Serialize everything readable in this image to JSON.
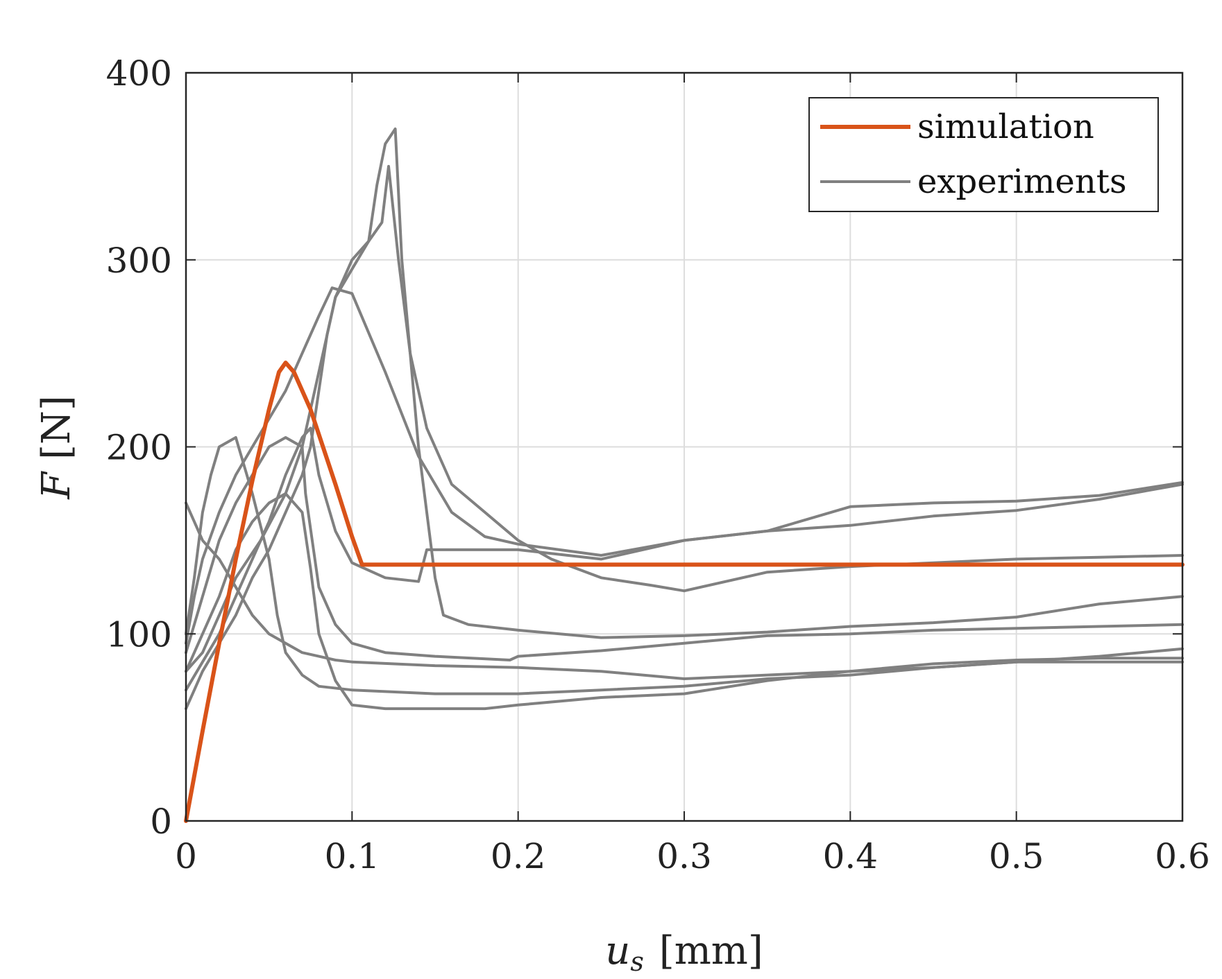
{
  "chart_data": {
    "type": "line",
    "xlabel": {
      "symbol": "u",
      "subscript": "s",
      "unit": "[mm]"
    },
    "ylabel": {
      "symbol": "F",
      "unit": "[N]"
    },
    "xlim": [
      0,
      0.6
    ],
    "ylim": [
      0,
      400
    ],
    "xticks": [
      0,
      0.1,
      0.2,
      0.3,
      0.4,
      0.5,
      0.6
    ],
    "xtick_labels": [
      "0",
      "0.1",
      "0.2",
      "0.3",
      "0.4",
      "0.5",
      "0.6"
    ],
    "yticks": [
      0,
      100,
      200,
      300,
      400
    ],
    "ytick_labels": [
      "0",
      "100",
      "200",
      "300",
      "400"
    ],
    "grid": true,
    "legend": {
      "position": "top-right",
      "entries": [
        "simulation",
        "experiments"
      ]
    },
    "colors": {
      "simulation": "#D95319",
      "experiments": "#808080",
      "grid": "#dddddd",
      "axes": "#262626"
    },
    "series": [
      {
        "name": "simulation",
        "points": [
          [
            0,
            0
          ],
          [
            0.01,
            48
          ],
          [
            0.02,
            95
          ],
          [
            0.03,
            140
          ],
          [
            0.04,
            182
          ],
          [
            0.05,
            220
          ],
          [
            0.056,
            240
          ],
          [
            0.06,
            245
          ],
          [
            0.065,
            240
          ],
          [
            0.075,
            220
          ],
          [
            0.09,
            180
          ],
          [
            0.1,
            152
          ],
          [
            0.106,
            137
          ],
          [
            0.6,
            137
          ]
        ]
      },
      {
        "name": "experiments",
        "curves": [
          [
            [
              0,
              95
            ],
            [
              0.005,
              120
            ],
            [
              0.01,
              140
            ],
            [
              0.02,
              165
            ],
            [
              0.03,
              185
            ],
            [
              0.04,
              200
            ],
            [
              0.05,
              215
            ],
            [
              0.06,
              230
            ],
            [
              0.07,
              250
            ],
            [
              0.08,
              270
            ],
            [
              0.088,
              285
            ],
            [
              0.1,
              282
            ],
            [
              0.12,
              240
            ],
            [
              0.14,
              195
            ],
            [
              0.16,
              165
            ],
            [
              0.18,
              152
            ],
            [
              0.2,
              148
            ],
            [
              0.25,
              142
            ],
            [
              0.3,
              150
            ],
            [
              0.35,
              155
            ],
            [
              0.4,
              158
            ],
            [
              0.45,
              163
            ],
            [
              0.5,
              166
            ],
            [
              0.55,
              172
            ],
            [
              0.6,
              180
            ]
          ],
          [
            [
              0,
              80
            ],
            [
              0.01,
              90
            ],
            [
              0.02,
              110
            ],
            [
              0.03,
              130
            ],
            [
              0.045,
              150
            ],
            [
              0.06,
              175
            ],
            [
              0.07,
              200
            ],
            [
              0.08,
              240
            ],
            [
              0.09,
              280
            ],
            [
              0.1,
              300
            ],
            [
              0.11,
              310
            ],
            [
              0.118,
              320
            ],
            [
              0.122,
              350
            ],
            [
              0.128,
              300
            ],
            [
              0.135,
              250
            ],
            [
              0.145,
              210
            ],
            [
              0.16,
              180
            ],
            [
              0.18,
              165
            ],
            [
              0.2,
              150
            ],
            [
              0.22,
              140
            ],
            [
              0.25,
              130
            ],
            [
              0.28,
              126
            ],
            [
              0.3,
              123
            ],
            [
              0.35,
              133
            ],
            [
              0.4,
              136
            ],
            [
              0.45,
              138
            ],
            [
              0.5,
              140
            ],
            [
              0.55,
              141
            ],
            [
              0.6,
              142
            ]
          ],
          [
            [
              0,
              60
            ],
            [
              0.005,
              70
            ],
            [
              0.01,
              80
            ],
            [
              0.02,
              95
            ],
            [
              0.03,
              110
            ],
            [
              0.04,
              130
            ],
            [
              0.05,
              145
            ],
            [
              0.06,
              165
            ],
            [
              0.07,
              185
            ],
            [
              0.075,
              200
            ],
            [
              0.08,
              230
            ],
            [
              0.085,
              260
            ],
            [
              0.09,
              280
            ],
            [
              0.1,
              295
            ],
            [
              0.11,
              310
            ],
            [
              0.115,
              340
            ],
            [
              0.12,
              362
            ],
            [
              0.126,
              370
            ],
            [
              0.13,
              300
            ],
            [
              0.135,
              250
            ],
            [
              0.14,
              200
            ],
            [
              0.145,
              165
            ],
            [
              0.15,
              130
            ],
            [
              0.155,
              110
            ],
            [
              0.17,
              105
            ],
            [
              0.2,
              102
            ],
            [
              0.25,
              98
            ],
            [
              0.3,
              99
            ],
            [
              0.35,
              101
            ],
            [
              0.4,
              104
            ],
            [
              0.45,
              106
            ],
            [
              0.5,
              109
            ],
            [
              0.55,
              116
            ],
            [
              0.6,
              120
            ]
          ],
          [
            [
              0,
              70
            ],
            [
              0.01,
              85
            ],
            [
              0.02,
              100
            ],
            [
              0.03,
              120
            ],
            [
              0.04,
              140
            ],
            [
              0.05,
              160
            ],
            [
              0.06,
              185
            ],
            [
              0.07,
              205
            ],
            [
              0.075,
              210
            ],
            [
              0.08,
              185
            ],
            [
              0.09,
              155
            ],
            [
              0.1,
              138
            ],
            [
              0.12,
              130
            ],
            [
              0.14,
              128
            ],
            [
              0.145,
              145
            ],
            [
              0.2,
              145
            ],
            [
              0.25,
              140
            ],
            [
              0.3,
              150
            ],
            [
              0.35,
              155
            ],
            [
              0.4,
              168
            ],
            [
              0.45,
              170
            ],
            [
              0.5,
              171
            ],
            [
              0.55,
              174
            ],
            [
              0.6,
              181
            ]
          ],
          [
            [
              0,
              90
            ],
            [
              0.01,
              120
            ],
            [
              0.02,
              150
            ],
            [
              0.03,
              170
            ],
            [
              0.04,
              185
            ],
            [
              0.05,
              200
            ],
            [
              0.06,
              205
            ],
            [
              0.07,
              200
            ],
            [
              0.072,
              175
            ],
            [
              0.076,
              150
            ],
            [
              0.08,
              125
            ],
            [
              0.09,
              105
            ],
            [
              0.1,
              95
            ],
            [
              0.12,
              90
            ],
            [
              0.15,
              88
            ],
            [
              0.195,
              86
            ],
            [
              0.2,
              88
            ],
            [
              0.25,
              91
            ],
            [
              0.3,
              95
            ],
            [
              0.35,
              99
            ],
            [
              0.4,
              100
            ],
            [
              0.45,
              102
            ],
            [
              0.5,
              103
            ],
            [
              0.55,
              104
            ],
            [
              0.6,
              105
            ]
          ],
          [
            [
              0,
              80
            ],
            [
              0.01,
              100
            ],
            [
              0.02,
              120
            ],
            [
              0.03,
              145
            ],
            [
              0.04,
              160
            ],
            [
              0.05,
              170
            ],
            [
              0.06,
              175
            ],
            [
              0.07,
              165
            ],
            [
              0.075,
              135
            ],
            [
              0.08,
              100
            ],
            [
              0.09,
              75
            ],
            [
              0.1,
              62
            ],
            [
              0.12,
              60
            ],
            [
              0.15,
              60
            ],
            [
              0.18,
              60
            ],
            [
              0.2,
              62
            ],
            [
              0.25,
              66
            ],
            [
              0.3,
              68
            ],
            [
              0.35,
              75
            ],
            [
              0.4,
              80
            ],
            [
              0.45,
              84
            ],
            [
              0.5,
              86
            ],
            [
              0.55,
              87
            ],
            [
              0.6,
              87
            ]
          ],
          [
            [
              0,
              170
            ],
            [
              0.005,
              160
            ],
            [
              0.01,
              150
            ],
            [
              0.02,
              140
            ],
            [
              0.03,
              125
            ],
            [
              0.04,
              110
            ],
            [
              0.05,
              100
            ],
            [
              0.06,
              95
            ],
            [
              0.07,
              90
            ],
            [
              0.08,
              88
            ],
            [
              0.09,
              86
            ],
            [
              0.1,
              85
            ],
            [
              0.15,
              83
            ],
            [
              0.2,
              82
            ],
            [
              0.25,
              80
            ],
            [
              0.3,
              76
            ],
            [
              0.35,
              78
            ],
            [
              0.4,
              80
            ],
            [
              0.45,
              82
            ],
            [
              0.5,
              85
            ],
            [
              0.55,
              85
            ],
            [
              0.6,
              85
            ]
          ],
          [
            [
              0,
              100
            ],
            [
              0.005,
              130
            ],
            [
              0.01,
              165
            ],
            [
              0.015,
              185
            ],
            [
              0.02,
              200
            ],
            [
              0.03,
              205
            ],
            [
              0.04,
              175
            ],
            [
              0.05,
              140
            ],
            [
              0.055,
              110
            ],
            [
              0.06,
              90
            ],
            [
              0.07,
              78
            ],
            [
              0.08,
              72
            ],
            [
              0.1,
              70
            ],
            [
              0.15,
              68
            ],
            [
              0.2,
              68
            ],
            [
              0.25,
              70
            ],
            [
              0.3,
              72
            ],
            [
              0.35,
              76
            ],
            [
              0.4,
              78
            ],
            [
              0.45,
              82
            ],
            [
              0.5,
              85
            ],
            [
              0.55,
              88
            ],
            [
              0.6,
              92
            ]
          ]
        ]
      }
    ]
  }
}
